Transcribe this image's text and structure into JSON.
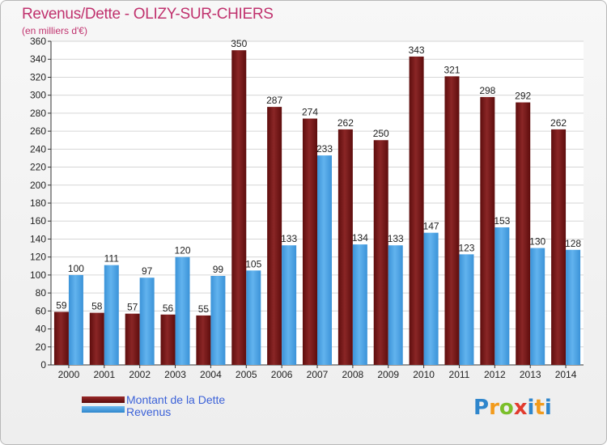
{
  "header": {
    "title": "Revenus/Dette - OLIZY-SUR-CHIERS",
    "subtitle": "(en milliers d'€)"
  },
  "legend": {
    "dette_label": "Montant de la Dette",
    "revenus_label": "Revenus"
  },
  "logo": {
    "text": "Proxiti"
  },
  "colors": {
    "dette": "#7a1a1a",
    "revenus": "#4aa3e8",
    "title": "#c0326e",
    "legend_text": "#3c62d8"
  },
  "chart_data": {
    "type": "bar",
    "title": "Revenus/Dette - OLIZY-SUR-CHIERS",
    "ylabel": "(en milliers d'€)",
    "xlabel": "",
    "categories": [
      "2000",
      "2001",
      "2002",
      "2003",
      "2004",
      "2005",
      "2006",
      "2007",
      "2008",
      "2009",
      "2010",
      "2011",
      "2012",
      "2013",
      "2014"
    ],
    "series": [
      {
        "name": "Montant de la Dette",
        "values": [
          59,
          58,
          57,
          56,
          55,
          350,
          287,
          274,
          262,
          250,
          343,
          321,
          298,
          292,
          262
        ]
      },
      {
        "name": "Revenus",
        "values": [
          100,
          111,
          97,
          120,
          99,
          105,
          133,
          233,
          134,
          133,
          147,
          123,
          153,
          130,
          128
        ]
      }
    ],
    "ylim": [
      0,
      360
    ],
    "ytick_step": 20,
    "grid": true,
    "legend_position": "bottom-left"
  }
}
